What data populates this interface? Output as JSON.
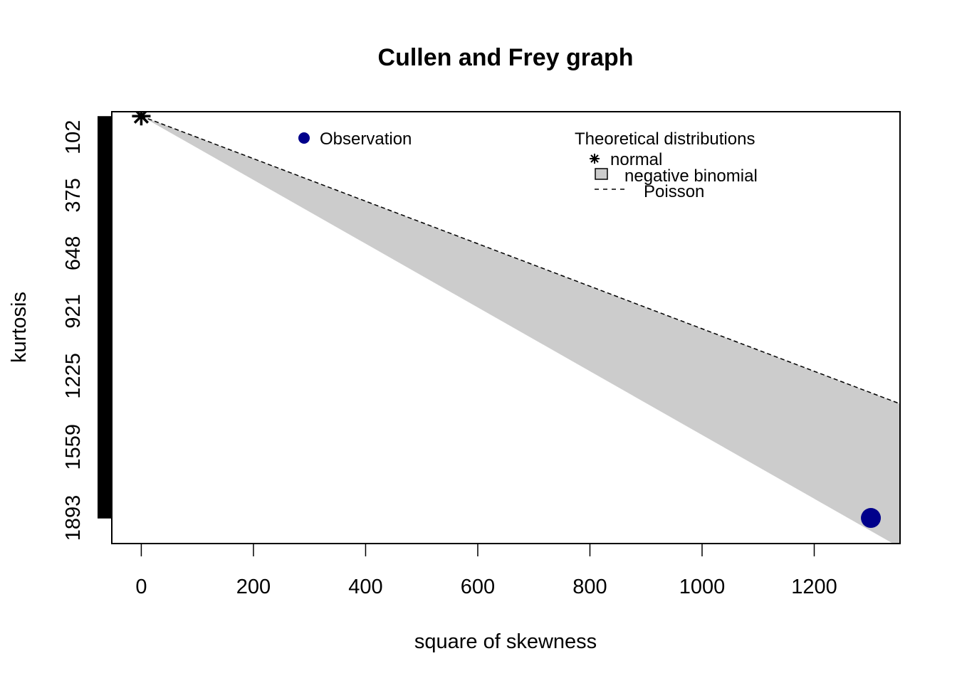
{
  "chart_data": {
    "type": "scatter",
    "title": "Cullen and Frey graph",
    "xlabel": "square of skewness",
    "ylabel": "kurtosis",
    "xlim": [
      -52.6,
      1353
    ],
    "ylim": [
      2013.3,
      -17.9
    ],
    "xticks": [
      0,
      200,
      400,
      600,
      800,
      1000,
      1200
    ],
    "xtick_labels": [
      "0",
      "200",
      "400",
      "600",
      "800",
      "1000",
      "1200"
    ],
    "yticks": [
      102,
      375,
      648,
      921,
      1225,
      1559,
      1893
    ],
    "ytick_labels": [
      "102",
      "375",
      "648",
      "921",
      "1225",
      "1559",
      "1893"
    ],
    "y_axis_note": "y axis inverted (kurtosis increases downward)",
    "observation": {
      "x": 1301,
      "y": 1893,
      "color": "#00008B"
    },
    "normal": {
      "x": 0,
      "y": 3
    },
    "poisson_line": [
      [
        0,
        3
      ],
      [
        1353,
        1356
      ]
    ],
    "negative_binomial_region": [
      [
        0,
        3
      ],
      [
        1353,
        2032
      ],
      [
        1353,
        1356
      ]
    ],
    "legend_observation": {
      "label": "Observation",
      "color": "#00008B",
      "position": "top-center"
    },
    "legend_theoretical": {
      "title": "Theoretical distributions",
      "position": "top-right",
      "items": [
        {
          "label": "normal",
          "marker": "asterisk"
        },
        {
          "label": "negative binomial",
          "marker": "grey-square",
          "color": "#CCCCCC"
        },
        {
          "label": "Poisson",
          "marker": "dashed-line"
        }
      ]
    },
    "grid": false,
    "region_color": "#CCCCCC"
  }
}
